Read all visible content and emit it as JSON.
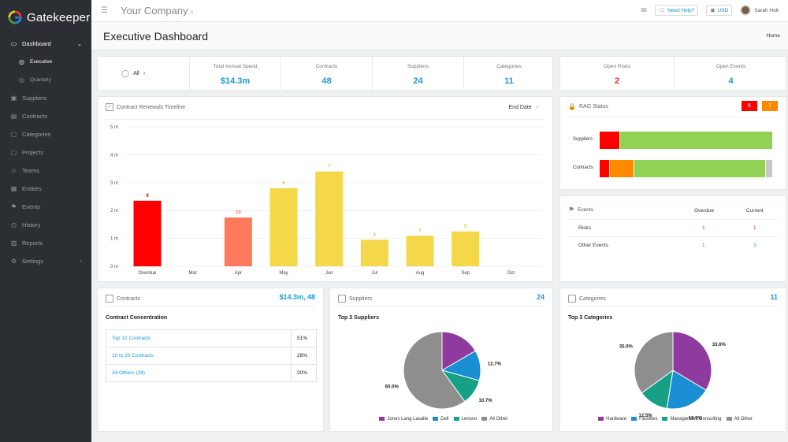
{
  "app": {
    "name": "Gatekeeper"
  },
  "sidebar": {
    "items": [
      {
        "label": "Dashboard",
        "icon": "monitor-icon",
        "name": "dashboard"
      },
      {
        "label": "Suppliers",
        "icon": "briefcase-icon",
        "name": "suppliers"
      },
      {
        "label": "Contracts",
        "icon": "document-icon",
        "name": "contracts"
      },
      {
        "label": "Categories",
        "icon": "folder-icon",
        "name": "categories"
      },
      {
        "label": "Projects",
        "icon": "folder-icon",
        "name": "projects"
      },
      {
        "label": "Teams",
        "icon": "users-icon",
        "name": "teams"
      },
      {
        "label": "Entities",
        "icon": "building-icon",
        "name": "entities"
      },
      {
        "label": "Events",
        "icon": "flag-icon",
        "name": "events"
      },
      {
        "label": "History",
        "icon": "clock-icon",
        "name": "history"
      },
      {
        "label": "Reports",
        "icon": "chart-icon",
        "name": "reports"
      },
      {
        "label": "Settings",
        "icon": "gear-icon",
        "name": "settings"
      }
    ],
    "sub_items": [
      {
        "label": "Executive",
        "icon": "globe-icon",
        "name": "executive"
      },
      {
        "label": "Quarterly",
        "icon": "globe-icon",
        "name": "quarterly"
      }
    ]
  },
  "header": {
    "company": "Your Company",
    "help_label": "Need Help?",
    "currency": "USD",
    "user_name": "Sarah Holt"
  },
  "page": {
    "title": "Executive Dashboard",
    "breadcrumb": "Home"
  },
  "stats": {
    "filter_label": "All",
    "items": [
      {
        "label": "Total Annual Spend",
        "value": "$14.3m"
      },
      {
        "label": "Contracts",
        "value": "48"
      },
      {
        "label": "Suppliers",
        "value": "24"
      },
      {
        "label": "Categories",
        "value": "11"
      }
    ]
  },
  "risks": {
    "open_risks_label": "Open Risks",
    "open_risks_value": "2",
    "open_events_label": "Open Events",
    "open_events_value": "4"
  },
  "renewals": {
    "title": "Contract Renewals Timeline",
    "sort_label": "End Date"
  },
  "chart_data": {
    "type": "bar",
    "title": "Contract Renewals Timeline",
    "categories": [
      "Overdue",
      "Mar",
      "Apr",
      "May",
      "Jun",
      "Jul",
      "Aug",
      "Sep",
      "Oct"
    ],
    "values": [
      2.35,
      0,
      1.75,
      2.8,
      3.4,
      0.95,
      1.1,
      1.25,
      0
    ],
    "data_labels": [
      "9",
      "",
      "10",
      "6",
      "7",
      "5",
      "5",
      "5",
      ""
    ],
    "colors": [
      "#ff0000",
      "",
      "#ff7a5c",
      "#f5d84a",
      "#f5d84a",
      "#f5d84a",
      "#f5d84a",
      "#f5d84a",
      ""
    ],
    "label_colors": [
      "#e00000",
      "",
      "#f27a5c",
      "#e7c64a",
      "#e7c64a",
      "#e7c64a",
      "#e7c64a",
      "#e7c64a",
      ""
    ],
    "yticks": [
      "0 m",
      "1 m",
      "2 m",
      "3 m",
      "4 m",
      "5 m"
    ],
    "ylim": [
      0,
      5
    ]
  },
  "rag": {
    "title": "RAG Status",
    "badge_red": "6",
    "badge_orange": "7",
    "rows": [
      {
        "label": "Suppliers",
        "segments": [
          {
            "color": "#ff0000",
            "value": 0.12
          },
          {
            "color": "#91d153",
            "value": 0.88
          }
        ]
      },
      {
        "label": "Contracts",
        "segments": [
          {
            "color": "#ff0000",
            "value": 0.06
          },
          {
            "color": "#ff8a00",
            "value": 0.14
          },
          {
            "color": "#91d153",
            "value": 0.76
          },
          {
            "color": "#c8c8c8",
            "value": 0.04
          }
        ]
      }
    ]
  },
  "events": {
    "title": "Events",
    "col_overdue": "Overdue",
    "col_current": "Current",
    "rows": [
      {
        "label": "Risks",
        "overdue": "1",
        "current": "1",
        "color": "#e03030"
      },
      {
        "label": "Other Events",
        "overdue": "1",
        "current": "3",
        "color": "#1d9ad6"
      }
    ]
  },
  "contracts_panel": {
    "title": "Contracts",
    "summary": "$14.3m, 48",
    "subtitle": "Contract Concentration",
    "rows": [
      {
        "label": "Top 10 Contracts",
        "value": "51%"
      },
      {
        "label": "10 to 20 Contracts",
        "value": "28%"
      },
      {
        "label": "All Others (28)",
        "value": "20%"
      }
    ]
  },
  "suppliers_panel": {
    "title": "Suppliers",
    "count": "24",
    "subtitle": "Top 3 Suppliers",
    "pie": [
      {
        "name": "Jones Lang Lasalle",
        "value": 16.6,
        "label": "16.6%",
        "color": "#8e3a9e"
      },
      {
        "name": "Dell",
        "value": 12.7,
        "label": "12.7%",
        "color": "#1b8fd4"
      },
      {
        "name": "Lenovo",
        "value": 10.7,
        "label": "10.7%",
        "color": "#16a085"
      },
      {
        "name": "All Other",
        "value": 60.0,
        "label": "60.0%",
        "color": "#8e8e8e"
      }
    ]
  },
  "categories_panel": {
    "title": "Categories",
    "count": "11",
    "subtitle": "Top 3 Categories",
    "pie": [
      {
        "name": "Hardware",
        "value": 33.6,
        "label": "33.6%",
        "color": "#8e3a9e"
      },
      {
        "name": "Facilities",
        "value": 18.9,
        "label": "18.9%",
        "color": "#1b8fd4"
      },
      {
        "name": "Management Consulting",
        "value": 12.5,
        "label": "12.5%",
        "color": "#16a085"
      },
      {
        "name": "All Other",
        "value": 35.0,
        "label": "35.0%",
        "color": "#8e8e8e"
      }
    ]
  }
}
